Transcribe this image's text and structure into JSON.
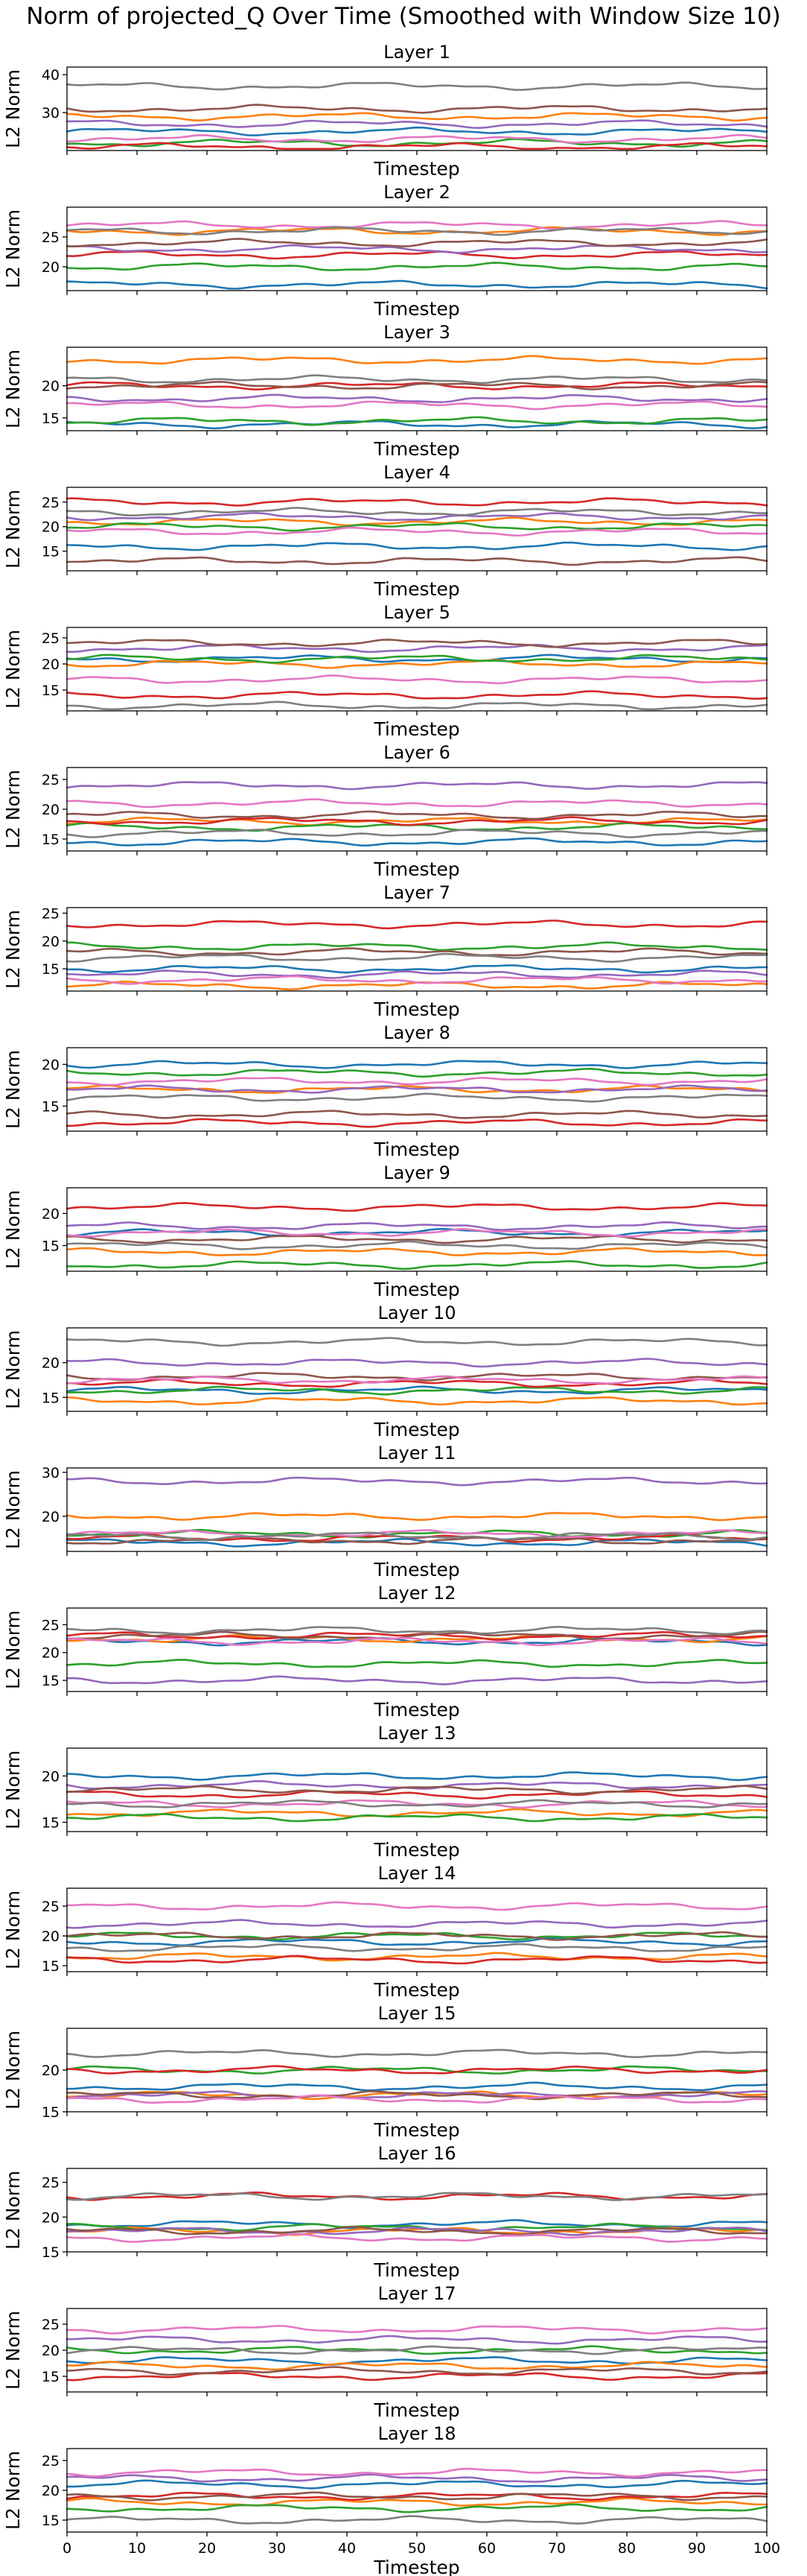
{
  "figure": {
    "title": "Norm of projected_Q Over Time (Smoothed with Window Size 10)",
    "xlabel": "Timestep",
    "ylabel": "L2 Norm"
  },
  "chart_data": {
    "type": "line",
    "grid": false,
    "legend": "none",
    "x_range": [
      0,
      100
    ],
    "x_ticks": [
      0,
      10,
      20,
      30,
      40,
      50,
      60,
      70,
      80,
      90,
      100
    ],
    "series_colors": [
      "#1f77b4",
      "#ff7f0e",
      "#2ca02c",
      "#d62728",
      "#9467bd",
      "#8c564b",
      "#e377c2",
      "#7f7f7f"
    ],
    "panels": [
      {
        "title": "Layer 1",
        "ylim": [
          20,
          42
        ],
        "yticks": [
          30,
          40
        ],
        "levels": [
          25,
          29,
          22,
          21,
          27,
          31,
          23,
          37
        ]
      },
      {
        "title": "Layer 2",
        "ylim": [
          16,
          30
        ],
        "yticks": [
          20,
          25
        ],
        "levels": [
          17,
          26,
          20,
          22,
          23,
          24,
          27,
          26
        ]
      },
      {
        "title": "Layer 3",
        "ylim": [
          13,
          26
        ],
        "yticks": [
          15,
          20
        ],
        "levels": [
          14,
          24,
          14.5,
          20,
          18,
          20,
          17,
          21
        ]
      },
      {
        "title": "Layer 4",
        "ylim": [
          11,
          28
        ],
        "yticks": [
          15,
          20,
          25
        ],
        "levels": [
          16,
          21,
          20,
          25,
          22,
          13,
          19,
          23
        ]
      },
      {
        "title": "Layer 5",
        "ylim": [
          11,
          27
        ],
        "yticks": [
          15,
          20,
          25
        ],
        "levels": [
          21,
          20,
          21,
          14,
          23,
          24,
          17,
          12
        ]
      },
      {
        "title": "Layer 6",
        "ylim": [
          13,
          27
        ],
        "yticks": [
          15,
          20,
          25
        ],
        "levels": [
          14.5,
          18,
          17,
          18,
          24,
          19,
          21,
          16
        ]
      },
      {
        "title": "Layer 7",
        "ylim": [
          11,
          26
        ],
        "yticks": [
          15,
          20,
          25
        ],
        "levels": [
          15,
          12,
          19,
          23,
          14,
          18,
          13,
          17
        ]
      },
      {
        "title": "Layer 8",
        "ylim": [
          12,
          22
        ],
        "yticks": [
          15,
          20
        ],
        "levels": [
          20,
          17,
          19,
          13,
          17,
          14,
          18,
          16
        ]
      },
      {
        "title": "Layer 9",
        "ylim": [
          11,
          24
        ],
        "yticks": [
          15,
          20
        ],
        "levels": [
          17,
          14,
          12,
          21,
          18,
          16,
          17,
          15
        ]
      },
      {
        "title": "Layer 10",
        "ylim": [
          13,
          25
        ],
        "yticks": [
          15,
          20
        ],
        "levels": [
          16,
          14.5,
          16,
          17,
          20,
          18,
          17.5,
          23
        ]
      },
      {
        "title": "Layer 11",
        "ylim": [
          12,
          31
        ],
        "yticks": [
          20,
          30
        ],
        "levels": [
          14,
          20,
          16,
          15,
          28,
          14.5,
          16,
          15.5
        ]
      },
      {
        "title": "Layer 12",
        "ylim": [
          13,
          28
        ],
        "yticks": [
          15,
          20,
          25
        ],
        "levels": [
          22,
          22.5,
          18,
          23,
          15,
          23,
          22,
          24
        ]
      },
      {
        "title": "Layer 13",
        "ylim": [
          14,
          23
        ],
        "yticks": [
          15,
          20
        ],
        "levels": [
          20,
          16,
          15.5,
          18,
          19,
          18.5,
          17,
          17
        ]
      },
      {
        "title": "Layer 14",
        "ylim": [
          14,
          28
        ],
        "yticks": [
          15,
          20,
          25
        ],
        "levels": [
          19,
          16.5,
          20,
          16,
          22,
          20,
          25,
          18
        ]
      },
      {
        "title": "Layer 15",
        "ylim": [
          15,
          25
        ],
        "yticks": [
          15,
          20
        ],
        "levels": [
          18,
          17,
          20,
          20,
          17,
          17,
          16.5,
          22
        ]
      },
      {
        "title": "Layer 16",
        "ylim": [
          15,
          27
        ],
        "yticks": [
          15,
          20,
          25
        ],
        "levels": [
          19,
          18,
          18.5,
          23,
          18,
          18,
          17,
          23
        ]
      },
      {
        "title": "Layer 17",
        "ylim": [
          12,
          28
        ],
        "yticks": [
          15,
          20,
          25
        ],
        "levels": [
          18,
          17,
          20,
          15,
          22,
          16,
          24,
          20
        ]
      },
      {
        "title": "Layer 18",
        "ylim": [
          13,
          27
        ],
        "yticks": [
          15,
          20,
          25
        ],
        "levels": [
          21,
          18,
          17,
          19,
          22,
          19,
          23,
          15
        ]
      }
    ]
  }
}
